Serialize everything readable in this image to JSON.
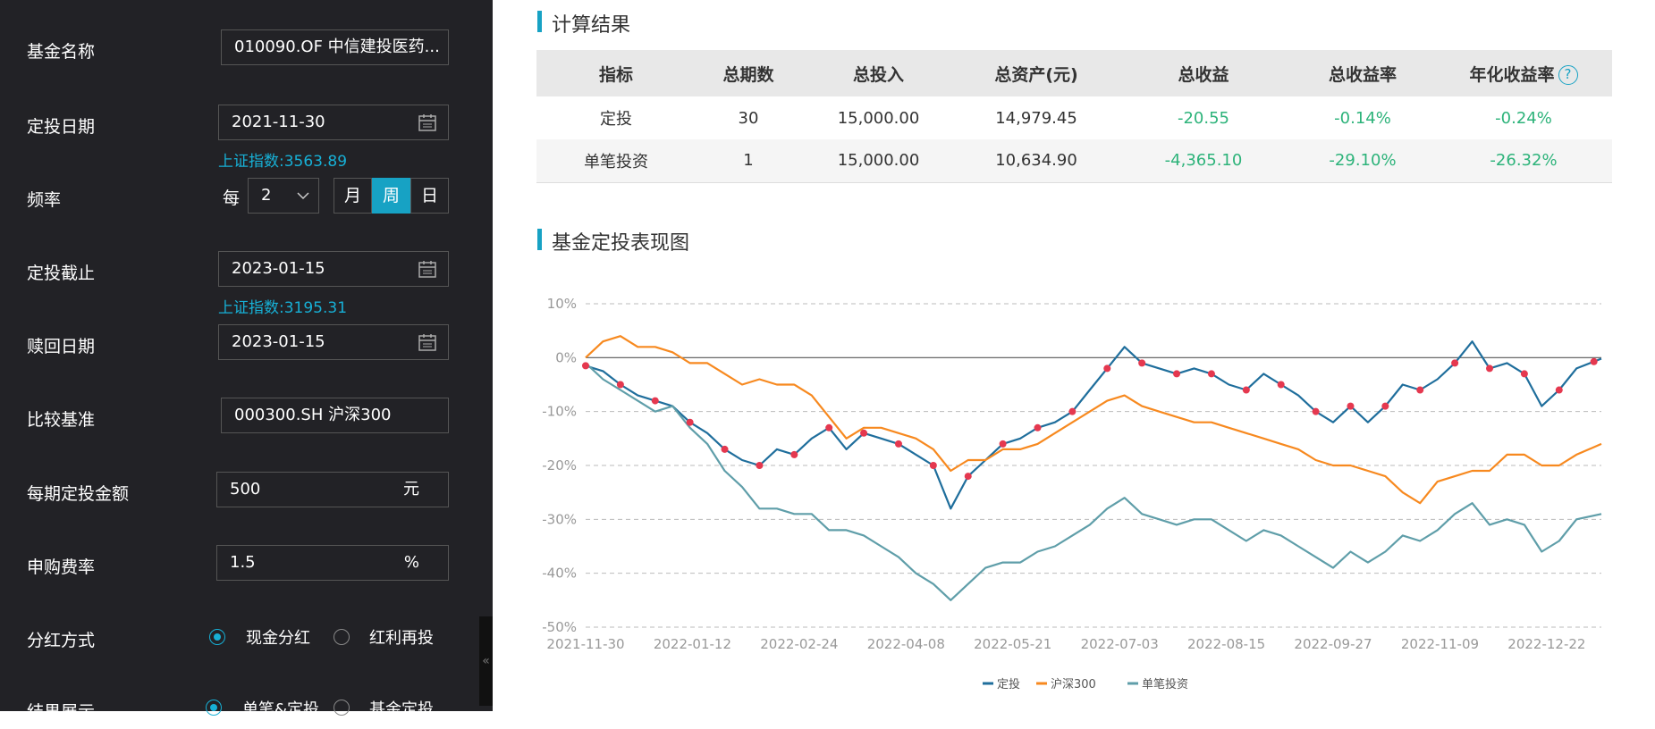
{
  "form": {
    "fund_name": {
      "label": "基金名称",
      "value": "010090.OF 中信建投医药..."
    },
    "start_date": {
      "label": "定投日期",
      "value": "2021-11-30",
      "index_hint": "上证指数:3563.89"
    },
    "frequency": {
      "label": "频率",
      "prefix": "每",
      "count": "2",
      "options": [
        "月",
        "周",
        "日"
      ],
      "selected": "周"
    },
    "end_date": {
      "label": "定投截止",
      "value": "2023-01-15",
      "index_hint": "上证指数:3195.31"
    },
    "redeem_date": {
      "label": "赎回日期",
      "value": "2023-01-15"
    },
    "benchmark": {
      "label": "比较基准",
      "value": "000300.SH 沪深300"
    },
    "amount": {
      "label": "每期定投金额",
      "value": "500",
      "unit": "元"
    },
    "fee": {
      "label": "申购费率",
      "value": "1.5",
      "unit": "%"
    },
    "dividend": {
      "label": "分红方式",
      "options": [
        "现金分红",
        "红利再投"
      ],
      "selected": "现金分红"
    },
    "display": {
      "label": "结果展示",
      "options": [
        "单笔&定投",
        "基金定投"
      ],
      "selected": "单笔&定投"
    }
  },
  "results": {
    "title": "计算结果",
    "headers": [
      "指标",
      "总期数",
      "总投入",
      "总资产(元)",
      "总收益",
      "总收益率",
      "年化收益率"
    ],
    "rows": [
      [
        "定投",
        "30",
        "15,000.00",
        "14,979.45",
        "-20.55",
        "-0.14%",
        "-0.24%"
      ],
      [
        "单笔投资",
        "1",
        "15,000.00",
        "10,634.90",
        "-4,365.10",
        "-29.10%",
        "-26.32%"
      ]
    ],
    "help_icon": "question-icon"
  },
  "chart_title": "基金定投表现图",
  "chart_data": {
    "type": "line",
    "x_ticks": [
      "2021-11-30",
      "2022-01-12",
      "2022-02-24",
      "2022-04-08",
      "2022-05-21",
      "2022-07-03",
      "2022-08-15",
      "2022-09-27",
      "2022-11-09",
      "2022-12-22"
    ],
    "x_range": [
      "2021-11-30",
      "2023-01-13"
    ],
    "y_ticks": [
      "10%",
      "0%",
      "-10%",
      "-20%",
      "-30%",
      "-40%",
      "-50%"
    ],
    "ylim": [
      -50,
      10
    ],
    "grid": true,
    "legend_position": "bottom-center",
    "series": [
      {
        "name": "定投",
        "color": "#1f6e9c",
        "points": [
          [
            "2021-11-30",
            -1.5
          ],
          [
            "2021-12-07",
            -2.5
          ],
          [
            "2021-12-14",
            -5
          ],
          [
            "2021-12-21",
            -7
          ],
          [
            "2021-12-28",
            -8
          ],
          [
            "2022-01-04",
            -9
          ],
          [
            "2022-01-11",
            -12
          ],
          [
            "2022-01-18",
            -14
          ],
          [
            "2022-01-25",
            -17
          ],
          [
            "2022-02-01",
            -19
          ],
          [
            "2022-02-08",
            -20
          ],
          [
            "2022-02-15",
            -17
          ],
          [
            "2022-02-22",
            -18
          ],
          [
            "2022-03-01",
            -15
          ],
          [
            "2022-03-08",
            -13
          ],
          [
            "2022-03-15",
            -17
          ],
          [
            "2022-03-22",
            -14
          ],
          [
            "2022-03-29",
            -15
          ],
          [
            "2022-04-05",
            -16
          ],
          [
            "2022-04-12",
            -18
          ],
          [
            "2022-04-19",
            -20
          ],
          [
            "2022-04-26",
            -28
          ],
          [
            "2022-05-03",
            -22
          ],
          [
            "2022-05-10",
            -19
          ],
          [
            "2022-05-17",
            -16
          ],
          [
            "2022-05-24",
            -15
          ],
          [
            "2022-05-31",
            -13
          ],
          [
            "2022-06-07",
            -12
          ],
          [
            "2022-06-14",
            -10
          ],
          [
            "2022-06-21",
            -6
          ],
          [
            "2022-06-28",
            -2
          ],
          [
            "2022-07-05",
            2
          ],
          [
            "2022-07-12",
            -1
          ],
          [
            "2022-07-19",
            -2
          ],
          [
            "2022-07-26",
            -3
          ],
          [
            "2022-08-02",
            -2
          ],
          [
            "2022-08-09",
            -3
          ],
          [
            "2022-08-16",
            -5
          ],
          [
            "2022-08-23",
            -6
          ],
          [
            "2022-08-30",
            -3
          ],
          [
            "2022-09-06",
            -5
          ],
          [
            "2022-09-13",
            -7
          ],
          [
            "2022-09-20",
            -10
          ],
          [
            "2022-09-27",
            -12
          ],
          [
            "2022-10-04",
            -9
          ],
          [
            "2022-10-11",
            -12
          ],
          [
            "2022-10-18",
            -9
          ],
          [
            "2022-10-25",
            -5
          ],
          [
            "2022-11-01",
            -6
          ],
          [
            "2022-11-08",
            -4
          ],
          [
            "2022-11-15",
            -1
          ],
          [
            "2022-11-22",
            3
          ],
          [
            "2022-11-29",
            -2
          ],
          [
            "2022-12-06",
            -1
          ],
          [
            "2022-12-13",
            -3
          ],
          [
            "2022-12-20",
            -9
          ],
          [
            "2022-12-27",
            -6
          ],
          [
            "2023-01-03",
            -2
          ],
          [
            "2023-01-13",
            -0.2
          ]
        ]
      },
      {
        "name": "沪深300",
        "color": "#f7891f",
        "points": [
          [
            "2021-11-30",
            0
          ],
          [
            "2021-12-07",
            3
          ],
          [
            "2021-12-14",
            4
          ],
          [
            "2021-12-21",
            2
          ],
          [
            "2021-12-28",
            2
          ],
          [
            "2022-01-04",
            1
          ],
          [
            "2022-01-11",
            -1
          ],
          [
            "2022-01-18",
            -1
          ],
          [
            "2022-01-25",
            -3
          ],
          [
            "2022-02-01",
            -5
          ],
          [
            "2022-02-08",
            -4
          ],
          [
            "2022-02-15",
            -5
          ],
          [
            "2022-02-22",
            -5
          ],
          [
            "2022-03-01",
            -7
          ],
          [
            "2022-03-08",
            -11
          ],
          [
            "2022-03-15",
            -15
          ],
          [
            "2022-03-22",
            -13
          ],
          [
            "2022-03-29",
            -13
          ],
          [
            "2022-04-05",
            -14
          ],
          [
            "2022-04-12",
            -15
          ],
          [
            "2022-04-19",
            -17
          ],
          [
            "2022-04-26",
            -21
          ],
          [
            "2022-05-03",
            -19
          ],
          [
            "2022-05-10",
            -19
          ],
          [
            "2022-05-17",
            -17
          ],
          [
            "2022-05-24",
            -17
          ],
          [
            "2022-05-31",
            -16
          ],
          [
            "2022-06-07",
            -14
          ],
          [
            "2022-06-14",
            -12
          ],
          [
            "2022-06-21",
            -10
          ],
          [
            "2022-06-28",
            -8
          ],
          [
            "2022-07-05",
            -7
          ],
          [
            "2022-07-12",
            -9
          ],
          [
            "2022-07-19",
            -10
          ],
          [
            "2022-07-26",
            -11
          ],
          [
            "2022-08-02",
            -12
          ],
          [
            "2022-08-09",
            -12
          ],
          [
            "2022-08-16",
            -13
          ],
          [
            "2022-08-23",
            -14
          ],
          [
            "2022-08-30",
            -15
          ],
          [
            "2022-09-06",
            -16
          ],
          [
            "2022-09-13",
            -17
          ],
          [
            "2022-09-20",
            -19
          ],
          [
            "2022-09-27",
            -20
          ],
          [
            "2022-10-04",
            -20
          ],
          [
            "2022-10-11",
            -21
          ],
          [
            "2022-10-18",
            -22
          ],
          [
            "2022-10-25",
            -25
          ],
          [
            "2022-11-01",
            -27
          ],
          [
            "2022-11-08",
            -23
          ],
          [
            "2022-11-15",
            -22
          ],
          [
            "2022-11-22",
            -21
          ],
          [
            "2022-11-29",
            -21
          ],
          [
            "2022-12-06",
            -18
          ],
          [
            "2022-12-13",
            -18
          ],
          [
            "2022-12-20",
            -20
          ],
          [
            "2022-12-27",
            -20
          ],
          [
            "2023-01-03",
            -18
          ],
          [
            "2023-01-13",
            -16
          ]
        ]
      },
      {
        "name": "单笔投资",
        "color": "#5f9ea9",
        "points": [
          [
            "2021-11-30",
            -1
          ],
          [
            "2021-12-07",
            -4
          ],
          [
            "2021-12-14",
            -6
          ],
          [
            "2021-12-21",
            -8
          ],
          [
            "2021-12-28",
            -10
          ],
          [
            "2022-01-04",
            -9
          ],
          [
            "2022-01-11",
            -13
          ],
          [
            "2022-01-18",
            -16
          ],
          [
            "2022-01-25",
            -21
          ],
          [
            "2022-02-01",
            -24
          ],
          [
            "2022-02-08",
            -28
          ],
          [
            "2022-02-15",
            -28
          ],
          [
            "2022-02-22",
            -29
          ],
          [
            "2022-03-01",
            -29
          ],
          [
            "2022-03-08",
            -32
          ],
          [
            "2022-03-15",
            -32
          ],
          [
            "2022-03-22",
            -33
          ],
          [
            "2022-03-29",
            -35
          ],
          [
            "2022-04-05",
            -37
          ],
          [
            "2022-04-12",
            -40
          ],
          [
            "2022-04-19",
            -42
          ],
          [
            "2022-04-26",
            -45
          ],
          [
            "2022-05-03",
            -42
          ],
          [
            "2022-05-10",
            -39
          ],
          [
            "2022-05-17",
            -38
          ],
          [
            "2022-05-24",
            -38
          ],
          [
            "2022-05-31",
            -36
          ],
          [
            "2022-06-07",
            -35
          ],
          [
            "2022-06-14",
            -33
          ],
          [
            "2022-06-21",
            -31
          ],
          [
            "2022-06-28",
            -28
          ],
          [
            "2022-07-05",
            -26
          ],
          [
            "2022-07-12",
            -29
          ],
          [
            "2022-07-19",
            -30
          ],
          [
            "2022-07-26",
            -31
          ],
          [
            "2022-08-02",
            -30
          ],
          [
            "2022-08-09",
            -30
          ],
          [
            "2022-08-16",
            -32
          ],
          [
            "2022-08-23",
            -34
          ],
          [
            "2022-08-30",
            -32
          ],
          [
            "2022-09-06",
            -33
          ],
          [
            "2022-09-13",
            -35
          ],
          [
            "2022-09-20",
            -37
          ],
          [
            "2022-09-27",
            -39
          ],
          [
            "2022-10-04",
            -36
          ],
          [
            "2022-10-11",
            -38
          ],
          [
            "2022-10-18",
            -36
          ],
          [
            "2022-10-25",
            -33
          ],
          [
            "2022-11-01",
            -34
          ],
          [
            "2022-11-08",
            -32
          ],
          [
            "2022-11-15",
            -29
          ],
          [
            "2022-11-22",
            -27
          ],
          [
            "2022-11-29",
            -31
          ],
          [
            "2022-12-06",
            -30
          ],
          [
            "2022-12-13",
            -31
          ],
          [
            "2022-12-20",
            -36
          ],
          [
            "2022-12-27",
            -34
          ],
          [
            "2023-01-03",
            -30
          ],
          [
            "2023-01-13",
            -29
          ]
        ]
      }
    ],
    "markers": {
      "series": "定投",
      "color": "#e5384f",
      "dates": [
        "2021-11-30",
        "2021-12-14",
        "2021-12-28",
        "2022-01-11",
        "2022-01-25",
        "2022-02-08",
        "2022-02-22",
        "2022-03-08",
        "2022-03-22",
        "2022-04-05",
        "2022-04-19",
        "2022-05-03",
        "2022-05-17",
        "2022-05-31",
        "2022-06-14",
        "2022-06-28",
        "2022-07-12",
        "2022-07-26",
        "2022-08-09",
        "2022-08-23",
        "2022-09-06",
        "2022-09-20",
        "2022-10-04",
        "2022-10-18",
        "2022-11-01",
        "2022-11-15",
        "2022-11-29",
        "2022-12-13",
        "2022-12-27",
        "2023-01-10"
      ]
    }
  }
}
